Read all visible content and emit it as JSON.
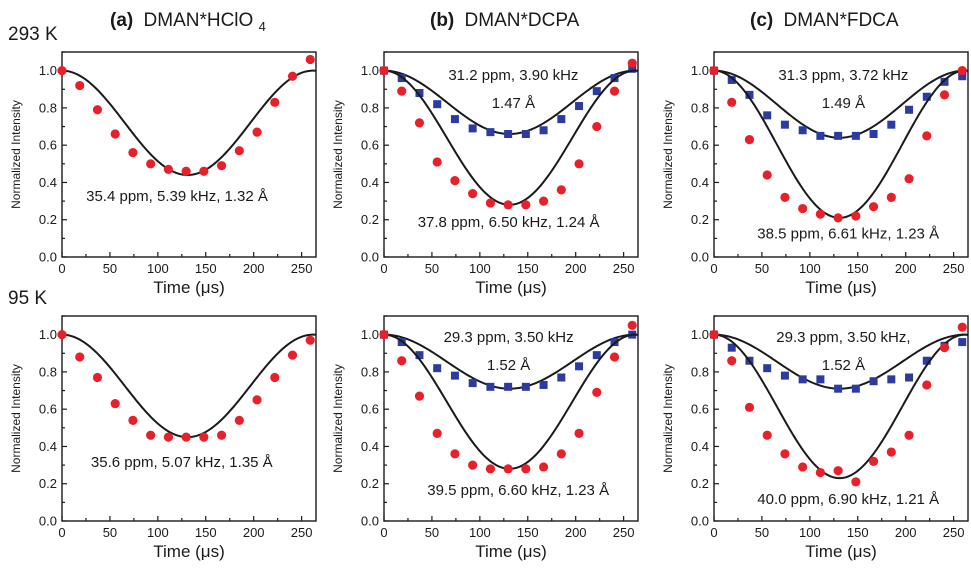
{
  "row_labels": [
    "293 K",
    "95 K"
  ],
  "column_titles": [
    {
      "prefix": "(a)",
      "text": "DMAN*HClO",
      "subscript": "4"
    },
    {
      "prefix": "(b)",
      "text": "DMAN*DCPA",
      "subscript": ""
    },
    {
      "prefix": "(c)",
      "text": "DMAN*FDCA",
      "subscript": ""
    }
  ],
  "colors": {
    "red_series": "#e8202a",
    "blue_series": "#2b3c9e",
    "axis": "#1a1a1a"
  },
  "chart_data": [
    {
      "type": "scatter",
      "row": 0,
      "col": 0,
      "xlabel": "Time (μs)",
      "ylabel": "Normalized Intensity",
      "xlim": [
        0,
        265
      ],
      "ylim": [
        0,
        1.1
      ],
      "xticks": [
        0,
        50,
        100,
        150,
        200,
        250
      ],
      "yticks": [
        0.0,
        0.2,
        0.4,
        0.6,
        0.8,
        1.0
      ],
      "series": [
        {
          "color": "red",
          "marker": "circle",
          "x": [
            0,
            18.5,
            37,
            55.5,
            74,
            92.5,
            111,
            129.5,
            148,
            166.5,
            185,
            203.5,
            222,
            240.5,
            259
          ],
          "y": [
            1.0,
            0.92,
            0.79,
            0.66,
            0.56,
            0.5,
            0.47,
            0.46,
            0.46,
            0.49,
            0.57,
            0.67,
            0.83,
            0.97,
            1.06
          ],
          "fit": {
            "depth": 0.56,
            "period": 262,
            "min_x": 131
          }
        }
      ],
      "annotations": [
        {
          "text": "35.4 ppm, 5.39 kHz, 1.32 Å",
          "at": [
            120,
            0.3
          ]
        }
      ]
    },
    {
      "type": "scatter",
      "row": 0,
      "col": 1,
      "xlabel": "Time (μs)",
      "ylabel": "Normalized Intensity",
      "xlim": [
        0,
        265
      ],
      "ylim": [
        0,
        1.1
      ],
      "xticks": [
        0,
        50,
        100,
        150,
        200,
        250
      ],
      "yticks": [
        0.0,
        0.2,
        0.4,
        0.6,
        0.8,
        1.0
      ],
      "series": [
        {
          "color": "blue",
          "marker": "square",
          "x": [
            0,
            18.5,
            37,
            55.5,
            74,
            92.5,
            111,
            129.5,
            148,
            166.5,
            185,
            203.5,
            222,
            240.5,
            259
          ],
          "y": [
            1.0,
            0.96,
            0.88,
            0.82,
            0.74,
            0.69,
            0.67,
            0.66,
            0.66,
            0.68,
            0.74,
            0.81,
            0.89,
            0.96,
            1.01
          ],
          "fit": {
            "depth": 0.34,
            "period": 262,
            "min_x": 131
          }
        },
        {
          "color": "red",
          "marker": "circle",
          "x": [
            0,
            18.5,
            37,
            55.5,
            74,
            92.5,
            111,
            129.5,
            148,
            166.5,
            185,
            203.5,
            222,
            240.5,
            259
          ],
          "y": [
            1.0,
            0.89,
            0.72,
            0.51,
            0.41,
            0.34,
            0.29,
            0.28,
            0.28,
            0.3,
            0.36,
            0.5,
            0.7,
            0.89,
            1.04
          ],
          "fit": {
            "depth": 0.72,
            "period": 262,
            "min_x": 131
          }
        }
      ],
      "annotations": [
        {
          "text": "31.2 ppm, 3.90 kHz",
          "at": [
            135,
            0.95
          ]
        },
        {
          "text": "1.47 Å",
          "at": [
            135,
            0.8
          ]
        },
        {
          "text": "37.8 ppm, 6.50 kHz, 1.24 Å",
          "at": [
            130,
            0.16
          ]
        }
      ]
    },
    {
      "type": "scatter",
      "row": 0,
      "col": 2,
      "xlabel": "Time (μs)",
      "ylabel": "Normalized Intensity",
      "xlim": [
        0,
        265
      ],
      "ylim": [
        0,
        1.1
      ],
      "xticks": [
        0,
        50,
        100,
        150,
        200,
        250
      ],
      "yticks": [
        0.0,
        0.2,
        0.4,
        0.6,
        0.8,
        1.0
      ],
      "series": [
        {
          "color": "blue",
          "marker": "square",
          "x": [
            0,
            18.5,
            37,
            55.5,
            74,
            92.5,
            111,
            129.5,
            148,
            166.5,
            185,
            203.5,
            222,
            240.5,
            259
          ],
          "y": [
            1.0,
            0.95,
            0.87,
            0.76,
            0.71,
            0.68,
            0.65,
            0.65,
            0.65,
            0.66,
            0.71,
            0.79,
            0.86,
            0.94,
            0.97
          ],
          "fit": {
            "depth": 0.36,
            "period": 262,
            "min_x": 131
          }
        },
        {
          "color": "red",
          "marker": "circle",
          "x": [
            0,
            18.5,
            37,
            55.5,
            74,
            92.5,
            111,
            129.5,
            148,
            166.5,
            185,
            203.5,
            222,
            240.5,
            259
          ],
          "y": [
            1.0,
            0.83,
            0.63,
            0.44,
            0.32,
            0.26,
            0.23,
            0.21,
            0.22,
            0.27,
            0.32,
            0.42,
            0.65,
            0.87,
            1.0
          ],
          "fit": {
            "depth": 0.79,
            "period": 262,
            "min_x": 131
          }
        }
      ],
      "annotations": [
        {
          "text": "31.3 ppm, 3.72 kHz",
          "at": [
            135,
            0.95
          ]
        },
        {
          "text": "1.49 Å",
          "at": [
            135,
            0.8
          ]
        },
        {
          "text": "38.5 ppm, 6.61 kHz, 1.23 Å",
          "at": [
            140,
            0.1
          ]
        }
      ]
    },
    {
      "type": "scatter",
      "row": 1,
      "col": 0,
      "xlabel": "Time (μs)",
      "ylabel": "Normalized Intensity",
      "xlim": [
        0,
        265
      ],
      "ylim": [
        0,
        1.1
      ],
      "xticks": [
        0,
        50,
        100,
        150,
        200,
        250
      ],
      "yticks": [
        0.0,
        0.2,
        0.4,
        0.6,
        0.8,
        1.0
      ],
      "series": [
        {
          "color": "red",
          "marker": "circle",
          "x": [
            0,
            18.5,
            37,
            55.5,
            74,
            92.5,
            111,
            129.5,
            148,
            166.5,
            185,
            203.5,
            222,
            240.5,
            259
          ],
          "y": [
            1.0,
            0.88,
            0.77,
            0.63,
            0.54,
            0.46,
            0.45,
            0.45,
            0.45,
            0.46,
            0.54,
            0.65,
            0.77,
            0.89,
            0.97
          ],
          "fit": {
            "depth": 0.55,
            "period": 262,
            "min_x": 131
          }
        }
      ],
      "annotations": [
        {
          "text": "35.6 ppm, 5.07 kHz, 1.35 Å",
          "at": [
            125,
            0.29
          ]
        }
      ]
    },
    {
      "type": "scatter",
      "row": 1,
      "col": 1,
      "xlabel": "Time (μs)",
      "ylabel": "Normalized Intensity",
      "xlim": [
        0,
        265
      ],
      "ylim": [
        0,
        1.1
      ],
      "xticks": [
        0,
        50,
        100,
        150,
        200,
        250
      ],
      "yticks": [
        0.0,
        0.2,
        0.4,
        0.6,
        0.8,
        1.0
      ],
      "series": [
        {
          "color": "blue",
          "marker": "square",
          "x": [
            0,
            18.5,
            37,
            55.5,
            74,
            92.5,
            111,
            129.5,
            148,
            166.5,
            185,
            203.5,
            222,
            240.5,
            259
          ],
          "y": [
            1.0,
            0.96,
            0.89,
            0.82,
            0.78,
            0.74,
            0.72,
            0.72,
            0.72,
            0.73,
            0.77,
            0.83,
            0.89,
            0.96,
            1.0
          ],
          "fit": {
            "depth": 0.29,
            "period": 262,
            "min_x": 131
          }
        },
        {
          "color": "red",
          "marker": "circle",
          "x": [
            0,
            18.5,
            37,
            55.5,
            74,
            92.5,
            111,
            129.5,
            148,
            166.5,
            185,
            203.5,
            222,
            240.5,
            259
          ],
          "y": [
            1.0,
            0.86,
            0.67,
            0.47,
            0.36,
            0.3,
            0.28,
            0.28,
            0.28,
            0.29,
            0.36,
            0.47,
            0.69,
            0.88,
            1.05
          ],
          "fit": {
            "depth": 0.72,
            "period": 262,
            "min_x": 131
          }
        }
      ],
      "annotations": [
        {
          "text": "29.3 ppm, 3.50 kHz",
          "at": [
            130,
            0.96
          ]
        },
        {
          "text": "1.52 Å",
          "at": [
            130,
            0.81
          ]
        },
        {
          "text": "39.5 ppm, 6.60 kHz, 1.23 Å",
          "at": [
            140,
            0.14
          ]
        }
      ]
    },
    {
      "type": "scatter",
      "row": 1,
      "col": 2,
      "xlabel": "Time (μs)",
      "ylabel": "Normalized Intensity",
      "xlim": [
        0,
        265
      ],
      "ylim": [
        0,
        1.1
      ],
      "xticks": [
        0,
        50,
        100,
        150,
        200,
        250
      ],
      "yticks": [
        0.0,
        0.2,
        0.4,
        0.6,
        0.8,
        1.0
      ],
      "series": [
        {
          "color": "blue",
          "marker": "square",
          "x": [
            0,
            18.5,
            37,
            55.5,
            74,
            92.5,
            111,
            129.5,
            148,
            166.5,
            185,
            203.5,
            222,
            240.5,
            259
          ],
          "y": [
            1.0,
            0.93,
            0.86,
            0.82,
            0.78,
            0.76,
            0.76,
            0.71,
            0.71,
            0.75,
            0.76,
            0.77,
            0.86,
            0.94,
            0.96
          ],
          "fit": {
            "depth": 0.29,
            "period": 262,
            "min_x": 131
          }
        },
        {
          "color": "red",
          "marker": "circle",
          "x": [
            0,
            18.5,
            37,
            55.5,
            74,
            92.5,
            111,
            129.5,
            148,
            166.5,
            185,
            203.5,
            222,
            240.5,
            259
          ],
          "y": [
            1.0,
            0.86,
            0.61,
            0.46,
            0.36,
            0.29,
            0.26,
            0.27,
            0.21,
            0.32,
            0.37,
            0.46,
            0.73,
            0.93,
            1.04
          ],
          "fit": {
            "depth": 0.77,
            "period": 262,
            "min_x": 131
          }
        }
      ],
      "annotations": [
        {
          "text": "29.3 ppm, 3.50 kHz,",
          "at": [
            135,
            0.96
          ]
        },
        {
          "text": "1.52 Å",
          "at": [
            135,
            0.81
          ]
        },
        {
          "text": "40.0 ppm, 6.90 kHz, 1.21 Å",
          "at": [
            140,
            0.09
          ]
        }
      ]
    }
  ]
}
